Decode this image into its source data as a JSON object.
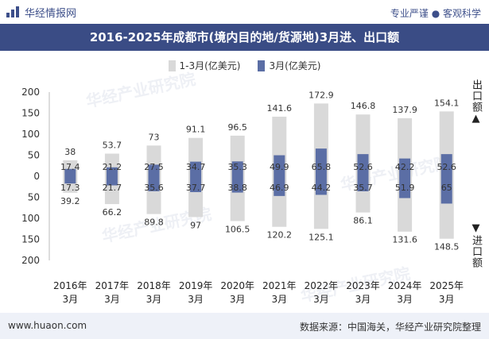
{
  "header": {
    "brand": "华经情报网",
    "slogan_left": "专业严谨",
    "slogan_right": "客观科学",
    "logo_icon": "bar-logo-icon"
  },
  "footer": {
    "site": "www.huaon.com",
    "source": "数据来源：中国海关，华经产业研究院整理"
  },
  "side_labels": {
    "top": "出口额▲",
    "bottom": "▼进口额"
  },
  "watermark": "华经产业研究院",
  "colors": {
    "title_bg": "#3a4c85",
    "series1": "#d9d9d9",
    "series2": "#5b6ea5"
  },
  "chart_data": {
    "type": "bar",
    "title": "2016-2025年成都市(境内目的地/货源地)3月进、出口额",
    "categories": [
      [
        "2016年",
        "3月"
      ],
      [
        "2017年",
        "3月"
      ],
      [
        "2018年",
        "3月"
      ],
      [
        "2019年",
        "3月"
      ],
      [
        "2020年",
        "3月"
      ],
      [
        "2021年",
        "3月"
      ],
      [
        "2022年",
        "3月"
      ],
      [
        "2023年",
        "3月"
      ],
      [
        "2024年",
        "3月"
      ],
      [
        "2025年",
        "3月"
      ]
    ],
    "yticks": [
      "200",
      "150",
      "100",
      "50",
      "0",
      "50",
      "100",
      "150",
      "200"
    ],
    "ylim": [
      -200,
      200
    ],
    "legend_position": "top",
    "series": [
      {
        "name": "1-3月(亿美元)",
        "export": [
          38,
          53.7,
          73,
          91.1,
          96.5,
          141.6,
          172.9,
          146.8,
          137.9,
          154.1
        ],
        "import": [
          39.2,
          66.2,
          89.8,
          97,
          106.5,
          120.2,
          125.1,
          86.1,
          131.6,
          148.5
        ]
      },
      {
        "name": "3月(亿美元)",
        "export": [
          17.4,
          21.2,
          27.5,
          34.7,
          35.3,
          49.9,
          65.8,
          52.6,
          42.2,
          52.6
        ],
        "import": [
          17.3,
          21.7,
          35.6,
          37.7,
          38.8,
          46.9,
          44.2,
          35.7,
          51.9,
          65
        ]
      }
    ]
  }
}
